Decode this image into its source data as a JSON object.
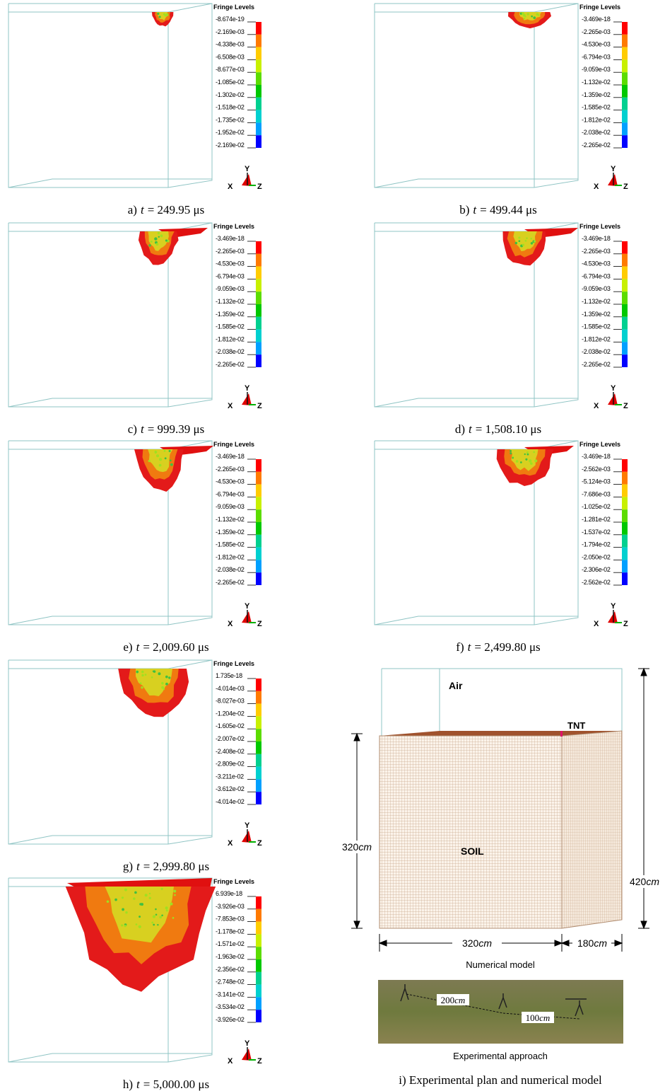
{
  "panels": [
    {
      "label": "a)",
      "variable": "t",
      "time": "= 249.95 μs",
      "legend_title": "Fringe Levels",
      "levels": [
        "-8.674e-19",
        "-2.169e-03",
        "-4.338e-03",
        "-6.508e-03",
        "-8.677e-03",
        "-1.085e-02",
        "-1.302e-02",
        "-1.518e-02",
        "-1.735e-02",
        "-1.952e-02",
        "-2.169e-02"
      ],
      "axes": {
        "y": "Y",
        "x": "X",
        "z": "Z"
      }
    },
    {
      "label": "b)",
      "variable": "t",
      "time": "= 499.44 μs",
      "legend_title": "Fringe Levels",
      "levels": [
        "-3.469e-18",
        "-2.265e-03",
        "-4.530e-03",
        "-6.794e-03",
        "-9.059e-03",
        "-1.132e-02",
        "-1.359e-02",
        "-1.585e-02",
        "-1.812e-02",
        "-2.038e-02",
        "-2.265e-02"
      ],
      "axes": {
        "y": "Y",
        "x": "X",
        "z": "Z"
      }
    },
    {
      "label": "c)",
      "variable": "t",
      "time": "= 999.39 μs",
      "legend_title": "Fringe Levels",
      "levels": [
        "-3.469e-18",
        "-2.265e-03",
        "-4.530e-03",
        "-6.794e-03",
        "-9.059e-03",
        "-1.132e-02",
        "-1.359e-02",
        "-1.585e-02",
        "-1.812e-02",
        "-2.038e-02",
        "-2.265e-02"
      ],
      "axes": {
        "y": "Y",
        "x": "X",
        "z": "Z"
      }
    },
    {
      "label": "d)",
      "variable": "t",
      "time": "= 1,508.10 μs",
      "legend_title": "Fringe Levels",
      "levels": [
        "-3.469e-18",
        "-2.265e-03",
        "-4.530e-03",
        "-6.794e-03",
        "-9.059e-03",
        "-1.132e-02",
        "-1.359e-02",
        "-1.585e-02",
        "-1.812e-02",
        "-2.038e-02",
        "-2.265e-02"
      ],
      "axes": {
        "y": "Y",
        "x": "X",
        "z": "Z"
      }
    },
    {
      "label": "e)",
      "variable": "t",
      "time": "= 2,009.60 μs",
      "legend_title": "Fringe Levels",
      "levels": [
        "-3.469e-18",
        "-2.265e-03",
        "-4.530e-03",
        "-6.794e-03",
        "-9.059e-03",
        "-1.132e-02",
        "-1.359e-02",
        "-1.585e-02",
        "-1.812e-02",
        "-2.038e-02",
        "-2.265e-02"
      ],
      "axes": {
        "y": "Y",
        "x": "X",
        "z": "Z"
      }
    },
    {
      "label": "f)",
      "variable": "t",
      "time": "= 2,499.80 μs",
      "legend_title": "Fringe Levels",
      "levels": [
        "-3.469e-18",
        "-2.562e-03",
        "-5.124e-03",
        "-7.686e-03",
        "-1.025e-02",
        "-1.281e-02",
        "-1.537e-02",
        "-1.794e-02",
        "-2.050e-02",
        "-2.306e-02",
        "-2.562e-02"
      ],
      "axes": {
        "y": "Y",
        "x": "X",
        "z": "Z"
      }
    },
    {
      "label": "g)",
      "variable": "t",
      "time": "= 2,999.80 μs",
      "legend_title": "Fringe Levels",
      "levels": [
        "1.735e-18",
        "-4.014e-03",
        "-8.027e-03",
        "-1.204e-02",
        "-1.605e-02",
        "-2.007e-02",
        "-2.408e-02",
        "-2.809e-02",
        "-3.211e-02",
        "-3.612e-02",
        "-4.014e-02"
      ],
      "axes": {
        "y": "Y",
        "x": "X",
        "z": "Z"
      }
    },
    {
      "label": "h)",
      "variable": "t",
      "time": "= 5,000.00 μs",
      "legend_title": "Fringe Levels",
      "levels": [
        "6.939e-18",
        "-3.926e-03",
        "-7.853e-03",
        "-1.178e-02",
        "-1.571e-02",
        "-1.963e-02",
        "-2.356e-02",
        "-2.748e-02",
        "-3.141e-02",
        "-3.534e-02",
        "-3.926e-02"
      ],
      "axes": {
        "y": "Y",
        "x": "X",
        "z": "Z"
      }
    }
  ],
  "model": {
    "air": "Air",
    "tnt": "TNT",
    "soil": "SOIL",
    "dims": {
      "height_left": {
        "number": "320",
        "unit": "cm"
      },
      "height_right": {
        "number": "420",
        "unit": "cm"
      },
      "width": {
        "number": "320",
        "unit": "cm"
      },
      "depth": {
        "number": "180",
        "unit": "cm"
      }
    },
    "model_label": "Numerical model",
    "photo_dims": [
      {
        "number": "200",
        "unit": "cm"
      },
      {
        "number": "100",
        "unit": "cm"
      }
    ],
    "photo_label": "Experimental approach",
    "caption": "i) Experimental plan and numerical model"
  }
}
